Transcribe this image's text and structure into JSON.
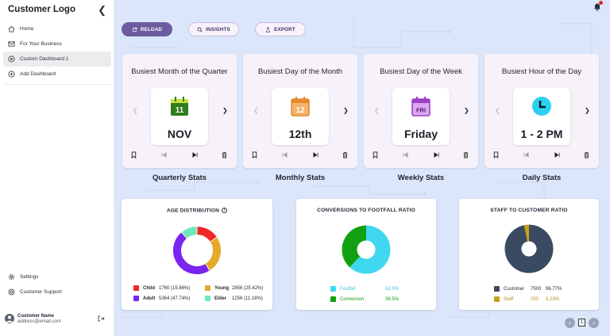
{
  "sidebar": {
    "logo": "Customer Logo",
    "items": [
      {
        "label": "Home",
        "icon": "home-icon"
      },
      {
        "label": "For Your Business",
        "icon": "mail-icon"
      },
      {
        "label": "Custom Dashboard 1",
        "icon": "dashboard-icon",
        "active": true
      },
      {
        "label": "Add Dashboard",
        "icon": "plus-circle-icon"
      }
    ],
    "bottom_items": [
      {
        "label": "Settings",
        "icon": "gear-icon"
      },
      {
        "label": "Customer Support",
        "icon": "support-icon"
      }
    ],
    "user": {
      "name": "Customer Name",
      "email": "address@email.com"
    }
  },
  "toolbar": {
    "reload": "RELOAD",
    "insights": "INSIGHTS",
    "export": "EXPORT"
  },
  "stats": [
    {
      "title": "Busiest Month of the Quarter",
      "icon_text": "11",
      "value": "NOV",
      "label": "Quarterly Stats",
      "icon_color": "#2f7d1c"
    },
    {
      "title": "Busiest Day of the Month",
      "icon_text": "12",
      "value": "12th",
      "label": "Monthly Stats",
      "icon_color": "#e6892b"
    },
    {
      "title": "Busiest Day of the Week",
      "icon_text": "FRI",
      "value": "Friday",
      "label": "Weekly Stats",
      "icon_color": "#9b3fc4"
    },
    {
      "title": "Busiest Hour of the Day",
      "icon_text": "",
      "value": "1 - 2 PM",
      "label": "Daily Stats",
      "icon_color": "#2bd2f0"
    }
  ],
  "charts": {
    "age": {
      "title": "AGE DISTRIBUTION",
      "legend": [
        {
          "name": "Child",
          "value": "1760 (15.66%)",
          "color": "#f02828"
        },
        {
          "name": "Young",
          "value": "2856 (25.42%)",
          "color": "#e6a92a"
        },
        {
          "name": "Adult",
          "value": "5364 (47.74%)",
          "color": "#7a24f0"
        },
        {
          "name": "Elder",
          "value": "1256 (11.18%)",
          "color": "#6fe8b8"
        }
      ]
    },
    "conversion": {
      "title": "CONVERSIONS TO FOOTFALL RATIO",
      "legend": [
        {
          "name": "Footfall",
          "value": "62.5%",
          "color": "#3fd8f0"
        },
        {
          "name": "Conversion",
          "value": "38.5%",
          "color": "#12a012"
        }
      ]
    },
    "staff": {
      "title": "STAFF TO CUSTOMER RATIO",
      "legend": [
        {
          "name": "Customer",
          "value": "7500",
          "pct": "96.77%",
          "color": "#3a4a63"
        },
        {
          "name": "Staff",
          "value": "250",
          "pct": "3.23%",
          "color": "#c8a018"
        }
      ]
    }
  },
  "chart_data": [
    {
      "type": "pie",
      "title": "AGE DISTRIBUTION",
      "donut": true,
      "slices": [
        {
          "label": "Child",
          "value": 1760,
          "percent": 15.66
        },
        {
          "label": "Young",
          "value": 2856,
          "percent": 25.42
        },
        {
          "label": "Adult",
          "value": 5364,
          "percent": 47.74
        },
        {
          "label": "Elder",
          "value": 1256,
          "percent": 11.18
        }
      ]
    },
    {
      "type": "pie",
      "title": "CONVERSIONS TO FOOTFALL RATIO",
      "donut": true,
      "slices": [
        {
          "label": "Footfall",
          "percent": 62.5
        },
        {
          "label": "Conversion",
          "percent": 38.5
        }
      ]
    },
    {
      "type": "pie",
      "title": "STAFF TO CUSTOMER RATIO",
      "donut": true,
      "slices": [
        {
          "label": "Customer",
          "value": 7500,
          "percent": 96.77
        },
        {
          "label": "Staff",
          "value": 250,
          "percent": 3.23
        }
      ]
    }
  ],
  "pagination": {
    "current": "1"
  }
}
